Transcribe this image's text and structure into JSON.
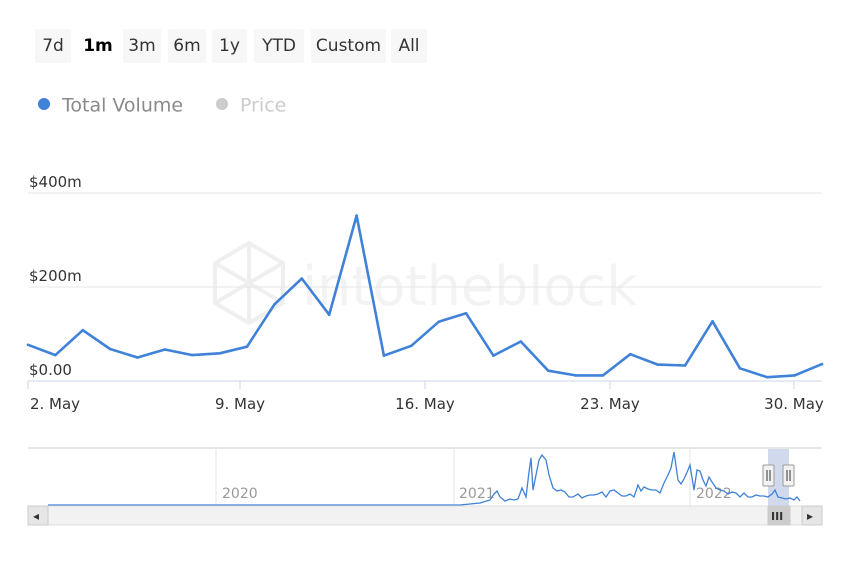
{
  "range_selector": {
    "buttons": [
      "7d",
      "1m",
      "3m",
      "6m",
      "1y",
      "YTD",
      "Custom",
      "All"
    ],
    "active": "1m"
  },
  "legend": {
    "items": [
      {
        "label": "Total Volume",
        "color": "#3f82d8",
        "visible": true
      },
      {
        "label": "Price",
        "color": "#cccccc",
        "visible": false
      }
    ]
  },
  "watermark": "intotheblock",
  "chart_data": {
    "type": "line",
    "title": "",
    "xlabel": "",
    "ylabel": "",
    "x_ticks": [
      "2. May",
      "9. May",
      "16. May",
      "23. May",
      "30. May"
    ],
    "y_ticks": [
      "$0.00",
      "$200m",
      "$400m"
    ],
    "ylim": [
      0,
      400
    ],
    "y_unit": "millions USD",
    "grid": true,
    "series": [
      {
        "name": "Total Volume",
        "color": "#3f82d8",
        "x": [
          "2022-05-02",
          "2022-05-03",
          "2022-05-04",
          "2022-05-05",
          "2022-05-06",
          "2022-05-07",
          "2022-05-08",
          "2022-05-09",
          "2022-05-10",
          "2022-05-11",
          "2022-05-12",
          "2022-05-13",
          "2022-05-14",
          "2022-05-15",
          "2022-05-16",
          "2022-05-17",
          "2022-05-18",
          "2022-05-19",
          "2022-05-20",
          "2022-05-21",
          "2022-05-22",
          "2022-05-23",
          "2022-05-24",
          "2022-05-25",
          "2022-05-26",
          "2022-05-27",
          "2022-05-28",
          "2022-05-29",
          "2022-05-30",
          "2022-05-31"
        ],
        "values": [
          77,
          55,
          108,
          68,
          50,
          67,
          55,
          59,
          73,
          163,
          218,
          141,
          352,
          54,
          75,
          126,
          144,
          54,
          84,
          22,
          12,
          12,
          57,
          35,
          33,
          127,
          27,
          8,
          12,
          36
        ]
      }
    ],
    "navigator": {
      "year_labels": [
        "2020",
        "2021",
        "2022"
      ],
      "scrollbar": {
        "left_arrow": "◂",
        "right_arrow": "▸",
        "grip": "III"
      }
    }
  }
}
